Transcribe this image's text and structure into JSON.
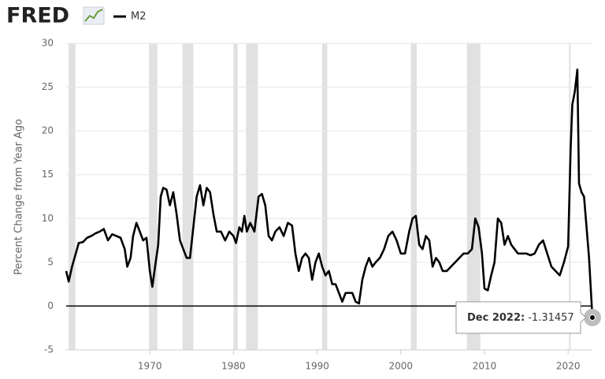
{
  "logo": "FRED",
  "chart_data": {
    "type": "line",
    "y_label": "Percent Change from Year Ago",
    "x": [
      1960.0,
      1960.3,
      1960.7,
      1961.0,
      1961.5,
      1962.0,
      1962.5,
      1963.0,
      1963.5,
      1964.0,
      1964.5,
      1965.0,
      1965.5,
      1966.0,
      1966.5,
      1967.0,
      1967.3,
      1967.7,
      1968.0,
      1968.4,
      1968.8,
      1969.2,
      1969.6,
      1970.0,
      1970.3,
      1970.7,
      1971.0,
      1971.3,
      1971.6,
      1972.0,
      1972.4,
      1972.8,
      1973.2,
      1973.6,
      1974.0,
      1974.4,
      1974.8,
      1975.2,
      1975.6,
      1976.0,
      1976.4,
      1976.8,
      1977.2,
      1977.6,
      1978.0,
      1978.5,
      1979.0,
      1979.5,
      1980.0,
      1980.3,
      1980.7,
      1981.0,
      1981.3,
      1981.6,
      1982.0,
      1982.5,
      1983.0,
      1983.4,
      1983.8,
      1984.2,
      1984.6,
      1985.0,
      1985.5,
      1986.0,
      1986.5,
      1987.0,
      1987.4,
      1987.8,
      1988.2,
      1988.6,
      1989.0,
      1989.4,
      1989.8,
      1990.2,
      1990.6,
      1991.0,
      1991.4,
      1991.8,
      1992.2,
      1992.6,
      1993.0,
      1993.4,
      1993.8,
      1994.2,
      1994.6,
      1995.0,
      1995.4,
      1995.8,
      1996.2,
      1996.6,
      1997.0,
      1997.5,
      1998.0,
      1998.5,
      1999.0,
      1999.5,
      2000.0,
      2000.5,
      2001.0,
      2001.4,
      2001.8,
      2002.2,
      2002.6,
      2003.0,
      2003.4,
      2003.8,
      2004.2,
      2004.6,
      2005.0,
      2005.5,
      2006.0,
      2006.5,
      2007.0,
      2007.5,
      2008.0,
      2008.5,
      2008.9,
      2009.3,
      2009.7,
      2010.0,
      2010.4,
      2010.8,
      2011.2,
      2011.6,
      2012.0,
      2012.4,
      2012.8,
      2013.2,
      2013.6,
      2014.0,
      2014.5,
      2015.0,
      2015.5,
      2016.0,
      2016.5,
      2017.0,
      2017.5,
      2018.0,
      2018.5,
      2019.0,
      2019.5,
      2020.0,
      2020.3,
      2020.5,
      2020.8,
      2021.1,
      2021.3,
      2021.6,
      2021.9,
      2022.2,
      2022.5,
      2022.9
    ],
    "series": [
      {
        "name": "M2",
        "color": "#000000",
        "values": [
          4.0,
          2.8,
          4.5,
          5.5,
          7.2,
          7.3,
          7.8,
          8.0,
          8.3,
          8.5,
          8.8,
          7.5,
          8.2,
          8.0,
          7.8,
          6.5,
          4.5,
          5.5,
          8.0,
          9.5,
          8.5,
          7.5,
          7.8,
          4.0,
          2.2,
          5.0,
          7.0,
          12.5,
          13.5,
          13.3,
          11.5,
          13.0,
          10.5,
          7.5,
          6.5,
          5.5,
          5.5,
          9.0,
          12.5,
          13.8,
          11.5,
          13.5,
          13.0,
          10.5,
          8.5,
          8.5,
          7.5,
          8.5,
          8.0,
          7.2,
          9.0,
          8.5,
          10.3,
          8.5,
          9.5,
          8.5,
          12.5,
          12.8,
          11.5,
          8.0,
          7.5,
          8.5,
          9.0,
          8.0,
          9.5,
          9.2,
          6.0,
          4.0,
          5.5,
          6.0,
          5.5,
          3.0,
          5.0,
          6.0,
          4.5,
          3.5,
          4.0,
          2.5,
          2.5,
          1.5,
          0.5,
          1.5,
          1.5,
          1.5,
          0.5,
          0.3,
          3.0,
          4.5,
          5.5,
          4.5,
          5.0,
          5.5,
          6.5,
          8.0,
          8.5,
          7.5,
          6.0,
          6.0,
          8.5,
          10.0,
          10.3,
          7.0,
          6.5,
          8.0,
          7.5,
          4.5,
          5.5,
          5.0,
          4.0,
          4.0,
          4.5,
          5.0,
          5.5,
          6.0,
          6.0,
          6.5,
          10.0,
          9.0,
          6.0,
          2.0,
          1.8,
          3.5,
          5.0,
          10.0,
          9.5,
          7.0,
          8.0,
          7.0,
          6.5,
          6.0,
          6.0,
          6.0,
          5.8,
          6.0,
          7.0,
          7.5,
          6.0,
          4.5,
          4.0,
          3.5,
          5.0,
          6.8,
          18.0,
          23.0,
          24.5,
          27.0,
          14.0,
          13.0,
          12.5,
          9.0,
          5.5,
          -1.31457
        ]
      }
    ],
    "recessions": [
      [
        1960.3,
        1961.1
      ],
      [
        1969.9,
        1970.9
      ],
      [
        1973.9,
        1975.2
      ],
      [
        1980.0,
        1980.5
      ],
      [
        1981.5,
        1982.9
      ],
      [
        1990.6,
        1991.2
      ],
      [
        2001.2,
        2001.9
      ],
      [
        2007.9,
        2009.5
      ],
      [
        2020.1,
        2020.3
      ]
    ],
    "recession_color": "#e1e1e1",
    "xlim": [
      1960,
      2022.9
    ],
    "xticks": [
      1970,
      1980,
      1990,
      2000,
      2010,
      2020
    ],
    "ylim": [
      -5,
      30
    ],
    "yticks": [
      -5,
      0,
      5,
      10,
      15,
      20,
      25,
      30
    ],
    "grid": true,
    "tooltip_label": "Dec 2022:"
  }
}
